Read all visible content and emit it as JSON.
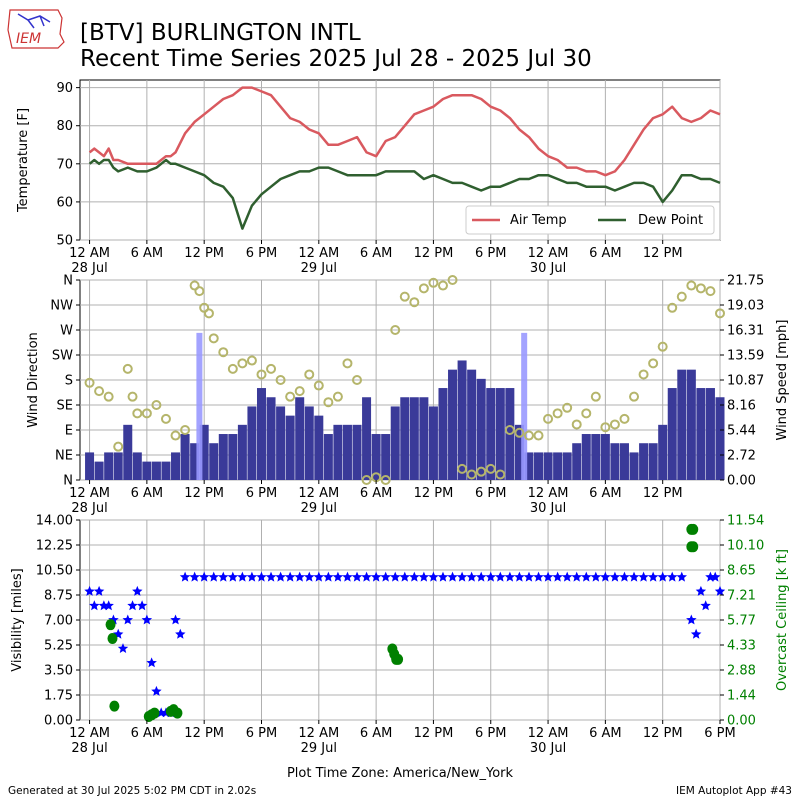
{
  "header": {
    "title_line1": "[BTV] BURLINGTON INTL",
    "title_line2": "Recent Time Series 2025 Jul 28 - 2025 Jul 30",
    "logo_text": "IEM"
  },
  "footer": {
    "generated": "Generated at 30 Jul 2025 5:02 PM CDT in 2.02s",
    "app": "IEM Autoplot App #43"
  },
  "colors": {
    "air_temp": "#d9595f",
    "dew_point": "#2f5f2f",
    "wind_speed": "#3a3a99",
    "wind_gust": "#9999ff",
    "wind_dir": "#b5b56b",
    "visibility": "#0000ff",
    "ceiling": "#008000",
    "grid": "#b0b0b0"
  },
  "x_axis": {
    "ticks": [
      0,
      6,
      12,
      18,
      24,
      30,
      36,
      42,
      48,
      54,
      60,
      66
    ],
    "tick_labels": [
      "12 AM",
      "6 AM",
      "12 PM",
      "6 PM",
      "12 AM",
      "6 AM",
      "12 PM",
      "6 PM",
      "12 AM",
      "6 AM",
      "12 PM",
      "6 PM"
    ],
    "day_labels": [
      {
        "at": 0,
        "text": "28 Jul"
      },
      {
        "at": 24,
        "text": "29 Jul"
      },
      {
        "at": 48,
        "text": "30 Jul"
      }
    ],
    "xlabel": "Plot Time Zone: America/New_York",
    "range_hours": [
      -1,
      66
    ]
  },
  "chart_data": [
    {
      "type": "line",
      "ylabel": "Temperature [F]",
      "ylim": [
        50,
        92
      ],
      "yticks": [
        50,
        60,
        70,
        80,
        90
      ],
      "grid": true,
      "legend_position": "lower-right",
      "x_unit": "hours since 28 Jul 12 AM",
      "series": [
        {
          "name": "Air Temp",
          "x": [
            0,
            0.5,
            1,
            1.5,
            2,
            2.5,
            3,
            4,
            5,
            6,
            7,
            7.5,
            8,
            8.5,
            9,
            10,
            11,
            12,
            13,
            14,
            15,
            16,
            17,
            18,
            19,
            20,
            21,
            22,
            23,
            24,
            25,
            26,
            27,
            28,
            29,
            30,
            31,
            32,
            33,
            34,
            35,
            36,
            37,
            38,
            39,
            40,
            41,
            42,
            43,
            44,
            45,
            46,
            47,
            48,
            49,
            50,
            51,
            52,
            53,
            54,
            55,
            56,
            57,
            58,
            59,
            60,
            61,
            62,
            63,
            64,
            65,
            66
          ],
          "values": [
            73,
            74,
            73,
            72,
            74,
            71,
            71,
            70,
            70,
            70,
            70,
            71,
            72,
            72,
            73,
            78,
            81,
            83,
            85,
            87,
            88,
            90,
            90,
            89,
            88,
            85,
            82,
            81,
            79,
            78,
            75,
            75,
            76,
            77,
            73,
            72,
            76,
            77,
            80,
            83,
            84,
            85,
            87,
            88,
            88,
            88,
            87,
            85,
            84,
            82,
            79,
            77,
            74,
            72,
            71,
            69,
            69,
            68,
            68,
            67,
            68,
            71,
            75,
            79,
            82,
            83,
            85,
            82,
            81,
            82,
            84,
            83
          ]
        },
        {
          "name": "Dew Point",
          "x": [
            0,
            0.5,
            1,
            1.5,
            2,
            2.5,
            3,
            4,
            5,
            6,
            7,
            7.5,
            8,
            8.5,
            9,
            10,
            11,
            12,
            13,
            14,
            15,
            16,
            17,
            18,
            19,
            20,
            21,
            22,
            23,
            24,
            25,
            26,
            27,
            28,
            29,
            30,
            31,
            32,
            33,
            34,
            35,
            36,
            37,
            38,
            39,
            40,
            41,
            42,
            43,
            44,
            45,
            46,
            47,
            48,
            49,
            50,
            51,
            52,
            53,
            54,
            55,
            56,
            57,
            58,
            59,
            60,
            61,
            62,
            63,
            64,
            65,
            66
          ],
          "values": [
            70,
            71,
            70,
            71,
            71,
            69,
            68,
            69,
            68,
            68,
            69,
            70,
            71,
            70,
            70,
            69,
            68,
            67,
            65,
            64,
            61,
            53,
            59,
            62,
            64,
            66,
            67,
            68,
            68,
            69,
            69,
            68,
            67,
            67,
            67,
            67,
            68,
            68,
            68,
            68,
            66,
            67,
            66,
            65,
            65,
            64,
            63,
            64,
            64,
            65,
            66,
            66,
            67,
            67,
            66,
            65,
            65,
            64,
            64,
            64,
            63,
            64,
            65,
            65,
            64,
            60,
            63,
            67,
            67,
            66,
            66,
            65
          ]
        }
      ]
    },
    {
      "type": "bar",
      "ylabel": "Wind Direction",
      "ylabel_right": "Wind Speed [mph]",
      "ylim_direction": [
        0,
        360
      ],
      "direction_ticks": [
        "N",
        "NE",
        "E",
        "SE",
        "S",
        "SW",
        "W",
        "NW",
        "N"
      ],
      "ylim_speed": [
        0,
        21.75
      ],
      "speed_ticks": [
        "0.00",
        "2.72",
        "5.44",
        "8.16",
        "10.87",
        "13.59",
        "16.31",
        "19.03",
        "21.75"
      ],
      "grid": true,
      "series": [
        {
          "name": "Wind Speed",
          "x": [
            0,
            1,
            2,
            3,
            4,
            5,
            6,
            7,
            8,
            9,
            10,
            11,
            12,
            13,
            14,
            15,
            16,
            17,
            18,
            19,
            20,
            21,
            22,
            23,
            24,
            25,
            26,
            27,
            28,
            29,
            30,
            31,
            32,
            33,
            34,
            35,
            36,
            37,
            38,
            39,
            40,
            41,
            42,
            43,
            44,
            45,
            46,
            47,
            48,
            49,
            50,
            51,
            52,
            53,
            54,
            55,
            56,
            57,
            58,
            59,
            60,
            61,
            62,
            63,
            64,
            65,
            66
          ],
          "values": [
            3,
            2,
            3,
            3,
            6,
            3,
            2,
            2,
            2,
            3,
            5,
            4,
            6,
            4,
            5,
            5,
            6,
            8,
            10,
            9,
            8,
            7,
            9,
            8,
            7,
            5,
            6,
            6,
            6,
            9,
            5,
            5,
            8,
            9,
            9,
            9,
            8,
            10,
            12,
            13,
            12,
            11,
            10,
            10,
            10,
            6,
            3,
            3,
            3,
            3,
            3,
            4,
            5,
            5,
            5,
            4,
            4,
            3,
            4,
            4,
            6,
            10,
            12,
            12,
            10,
            10,
            9
          ]
        },
        {
          "name": "Wind Gust",
          "x": [
            11.5,
            45.5
          ],
          "values": [
            16,
            16
          ]
        },
        {
          "name": "Wind Direction",
          "x": [
            0,
            1,
            2,
            3,
            4,
            4.5,
            5,
            6,
            7,
            8,
            9,
            10,
            11,
            11.5,
            12,
            12.5,
            13,
            14,
            15,
            16,
            17,
            18,
            19,
            20,
            21,
            22,
            23,
            24,
            25,
            26,
            27,
            28,
            29,
            30,
            31,
            32,
            33,
            34,
            35,
            36,
            37,
            38,
            39,
            40,
            41,
            42,
            43,
            44,
            45,
            46,
            47,
            48,
            49,
            50,
            51,
            52,
            53,
            54,
            55,
            56,
            57,
            58,
            59,
            60,
            61,
            62,
            63,
            64,
            65,
            66
          ],
          "values": [
            175,
            160,
            150,
            60,
            200,
            150,
            120,
            120,
            135,
            110,
            80,
            90,
            350,
            340,
            310,
            300,
            255,
            230,
            200,
            210,
            215,
            190,
            200,
            180,
            150,
            160,
            190,
            170,
            140,
            150,
            210,
            180,
            0,
            5,
            0,
            270,
            330,
            320,
            345,
            355,
            350,
            360,
            20,
            10,
            15,
            20,
            10,
            90,
            85,
            80,
            80,
            110,
            120,
            130,
            100,
            120,
            150,
            95,
            100,
            110,
            150,
            190,
            210,
            240,
            310,
            330,
            350,
            345,
            340,
            300
          ]
        }
      ]
    },
    {
      "type": "scatter",
      "ylabel": "Visibility [miles]",
      "ylabel_right": "Overcast Ceiling [k ft]",
      "ylim_visibility": [
        0,
        14
      ],
      "visibility_ticks": [
        "0.00",
        "1.75",
        "3.50",
        "5.25",
        "7.00",
        "8.75",
        "10.50",
        "12.25",
        "14.00"
      ],
      "ylim_ceiling": [
        0,
        11.54
      ],
      "ceiling_ticks": [
        "0.00",
        "1.44",
        "2.88",
        "4.33",
        "5.77",
        "7.21",
        "8.65",
        "10.10",
        "11.54"
      ],
      "grid": true,
      "series": [
        {
          "name": "Visibility",
          "x": [
            0,
            0.5,
            1,
            1.5,
            2,
            2.5,
            3,
            3.5,
            4,
            4.5,
            5,
            5.5,
            6,
            6.5,
            7,
            7.5,
            8,
            8.5,
            9,
            9.5,
            10,
            11,
            12,
            13,
            14,
            15,
            16,
            17,
            18,
            19,
            20,
            21,
            22,
            23,
            24,
            25,
            26,
            27,
            28,
            29,
            30,
            31,
            32,
            33,
            34,
            35,
            36,
            37,
            38,
            39,
            40,
            41,
            42,
            43,
            44,
            45,
            46,
            47,
            48,
            49,
            50,
            51,
            52,
            53,
            54,
            55,
            56,
            57,
            58,
            59,
            60,
            61,
            62,
            63,
            63.5,
            64,
            64.5,
            65,
            65.5,
            66
          ],
          "values": [
            9,
            8,
            9,
            8,
            8,
            7,
            6,
            5,
            7,
            8,
            9,
            8,
            7,
            4,
            2,
            0.5,
            0.5,
            0.5,
            7,
            6,
            10,
            10,
            10,
            10,
            10,
            10,
            10,
            10,
            10,
            10,
            10,
            10,
            10,
            10,
            10,
            10,
            10,
            10,
            10,
            10,
            10,
            10,
            10,
            10,
            10,
            10,
            10,
            10,
            10,
            10,
            10,
            10,
            10,
            10,
            10,
            10,
            10,
            10,
            10,
            10,
            10,
            10,
            10,
            10,
            10,
            10,
            10,
            10,
            10,
            10,
            10,
            10,
            10,
            7,
            6,
            9,
            8,
            10,
            10,
            9
          ]
        },
        {
          "name": "Overcast Ceiling",
          "x": [
            2.2,
            2.4,
            2.6,
            6.2,
            6.5,
            6.8,
            8.5,
            8.8,
            9.2,
            31.7,
            31.9,
            32.1,
            32.3,
            63.0,
            63.2,
            63.0,
            63.2
          ],
          "values": [
            5.5,
            4.7,
            0.8,
            0.2,
            0.3,
            0.4,
            0.5,
            0.6,
            0.4,
            4.1,
            3.8,
            3.5,
            3.5,
            11.0,
            11.0,
            10.0,
            10.0
          ]
        }
      ]
    }
  ]
}
